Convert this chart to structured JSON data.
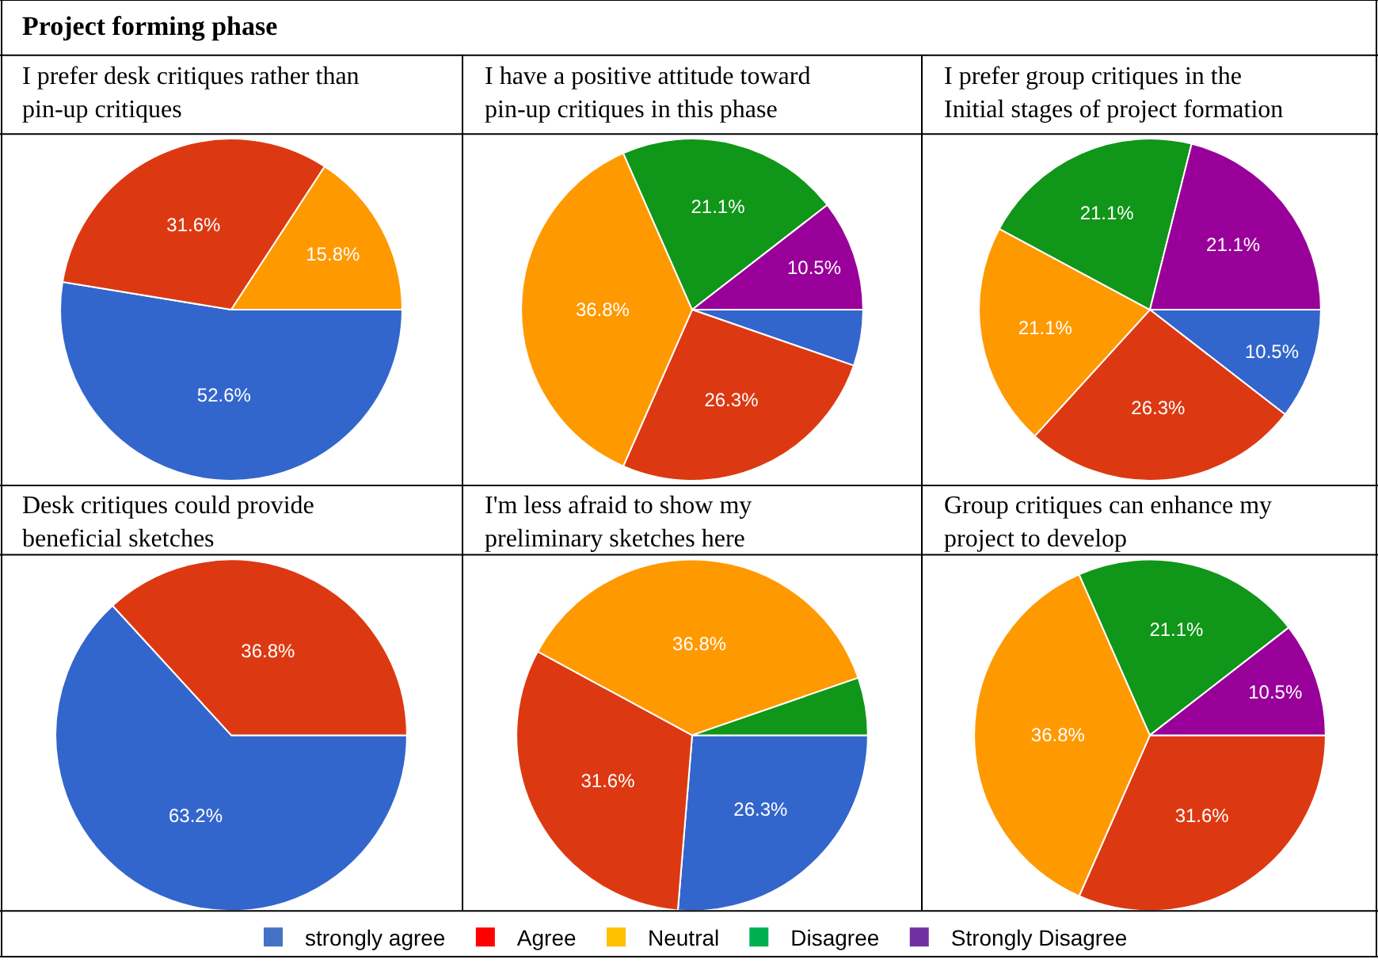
{
  "chart_data": [
    {
      "type": "other",
      "title": "Project forming phase"
    },
    {
      "type": "pie",
      "title": "I prefer desk critiques rather than pin-up critiques",
      "categories": [
        null,
        null,
        null
      ],
      "values": [
        52.6,
        31.6,
        15.8
      ],
      "colors": [
        "#3366cc",
        "#dc3912",
        "#ff9900"
      ],
      "value_labels": [
        "52.6%",
        "31.6%",
        "15.8%"
      ]
    },
    {
      "type": "pie",
      "title": "I have a positive attitude toward pin-up critiques in this phase",
      "categories": [
        null,
        null,
        null,
        null,
        null
      ],
      "values": [
        5.3,
        26.3,
        36.8,
        21.1,
        10.5
      ],
      "colors": [
        "#3366cc",
        "#dc3912",
        "#ff9900",
        "#109618",
        "#990099"
      ],
      "value_labels": [
        null,
        "26.3%",
        "36.8%",
        "21.1%",
        "10.5%"
      ]
    },
    {
      "type": "pie",
      "title": "I prefer group critiques in the Initial stages of project formation",
      "categories": [
        null,
        null,
        null,
        null,
        null
      ],
      "values": [
        10.5,
        26.3,
        21.1,
        21.1,
        21.1
      ],
      "colors": [
        "#3366cc",
        "#dc3912",
        "#ff9900",
        "#109618",
        "#990099"
      ],
      "value_labels": [
        "10.5%",
        "26.3%",
        "21.1%",
        "21.1%",
        "21.1%"
      ]
    },
    {
      "type": "pie",
      "title": "Desk critiques could provide beneficial sketches",
      "categories": [
        null,
        null
      ],
      "values": [
        63.2,
        36.8
      ],
      "colors": [
        "#3366cc",
        "#dc3912"
      ],
      "value_labels": [
        "63.2%",
        "36.8%"
      ]
    },
    {
      "type": "pie",
      "title": "I'm less afraid to show my preliminary sketches here",
      "categories": [
        null,
        null,
        null,
        null
      ],
      "values": [
        26.3,
        31.6,
        36.8,
        5.3
      ],
      "colors": [
        "#3366cc",
        "#dc3912",
        "#ff9900",
        "#109618"
      ],
      "value_labels": [
        "26.3%",
        "31.6%",
        "36.8%",
        null
      ]
    },
    {
      "type": "pie",
      "title": "Group critiques can enhance my project to develop",
      "categories": [
        null,
        null,
        null,
        null
      ],
      "values": [
        31.6,
        36.8,
        21.1,
        10.5
      ],
      "colors": [
        "#dc3912",
        "#ff9900",
        "#109618",
        "#990099"
      ],
      "value_labels": [
        "31.6%",
        "36.8%",
        "21.1%",
        "10.5%"
      ]
    },
    {
      "type": "other",
      "categories": [
        "strongly agree",
        "Agree",
        "Neutral",
        "Disagree",
        "Strongly Disagree"
      ],
      "colors": [
        "#4472c4",
        "#ff0000",
        "#ffc000",
        "#00b050",
        "#7030a0"
      ]
    }
  ]
}
